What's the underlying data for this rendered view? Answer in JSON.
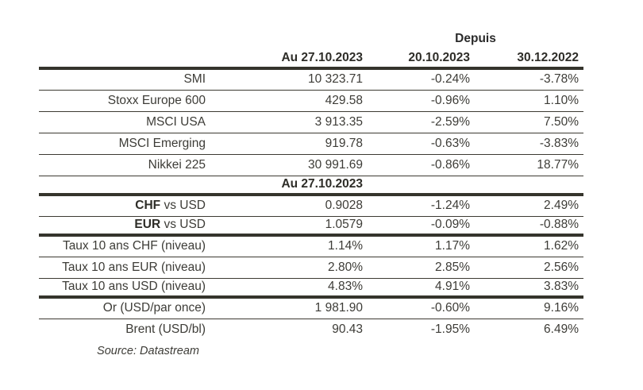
{
  "colors": {
    "rule_thick": "#35342c",
    "rule_thin": "#3c3a32",
    "text": "#3d3c37",
    "text_bold": "#2e2d28",
    "background": "#ffffff"
  },
  "table": {
    "depuis_label": "Depuis",
    "headers": [
      "Au 27.10.2023",
      "20.10.2023",
      "30.12.2022"
    ],
    "index_rows": [
      {
        "label": "SMI",
        "value": "10 323.71",
        "since_20_10": "-0.24%",
        "since_30_12": "-3.78%"
      },
      {
        "label": "Stoxx Europe 600",
        "value": "429.58",
        "since_20_10": "-0.96%",
        "since_30_12": "1.10%"
      },
      {
        "label": "MSCI USA",
        "value": "3 913.35",
        "since_20_10": "-2.59%",
        "since_30_12": "7.50%"
      },
      {
        "label": "MSCI Emerging",
        "value": "919.78",
        "since_20_10": "-0.63%",
        "since_30_12": "-3.83%"
      },
      {
        "label": "Nikkei 225",
        "value": "30 991.69",
        "since_20_10": "-0.86%",
        "since_30_12": "18.77%"
      }
    ],
    "subheader": "Au 27.10.2023",
    "fx_rows": [
      {
        "label_bold": "CHF",
        "label_rest": " vs USD",
        "value": "0.9028",
        "since_20_10": "-1.24%",
        "since_30_12": "2.49%"
      },
      {
        "label_bold": "EUR",
        "label_rest": " vs USD",
        "value": "1.0579",
        "since_20_10": "-0.09%",
        "since_30_12": "-0.88%"
      }
    ],
    "rate_rows": [
      {
        "label": "Taux 10 ans CHF (niveau)",
        "value": "1.14%",
        "since_20_10": "1.17%",
        "since_30_12": "1.62%"
      },
      {
        "label": "Taux 10 ans EUR (niveau)",
        "value": "2.80%",
        "since_20_10": "2.85%",
        "since_30_12": "2.56%"
      },
      {
        "label": "Taux 10 ans USD (niveau)",
        "value": "4.83%",
        "since_20_10": "4.91%",
        "since_30_12": "3.83%"
      }
    ],
    "commodity_rows": [
      {
        "label": "Or (USD/par once)",
        "value": "1 981.90",
        "since_20_10": "-0.60%",
        "since_30_12": "9.16%"
      },
      {
        "label": "Brent (USD/bl)",
        "value": "90.43",
        "since_20_10": "-1.95%",
        "since_30_12": "6.49%"
      }
    ],
    "source": "Source: Datastream"
  }
}
